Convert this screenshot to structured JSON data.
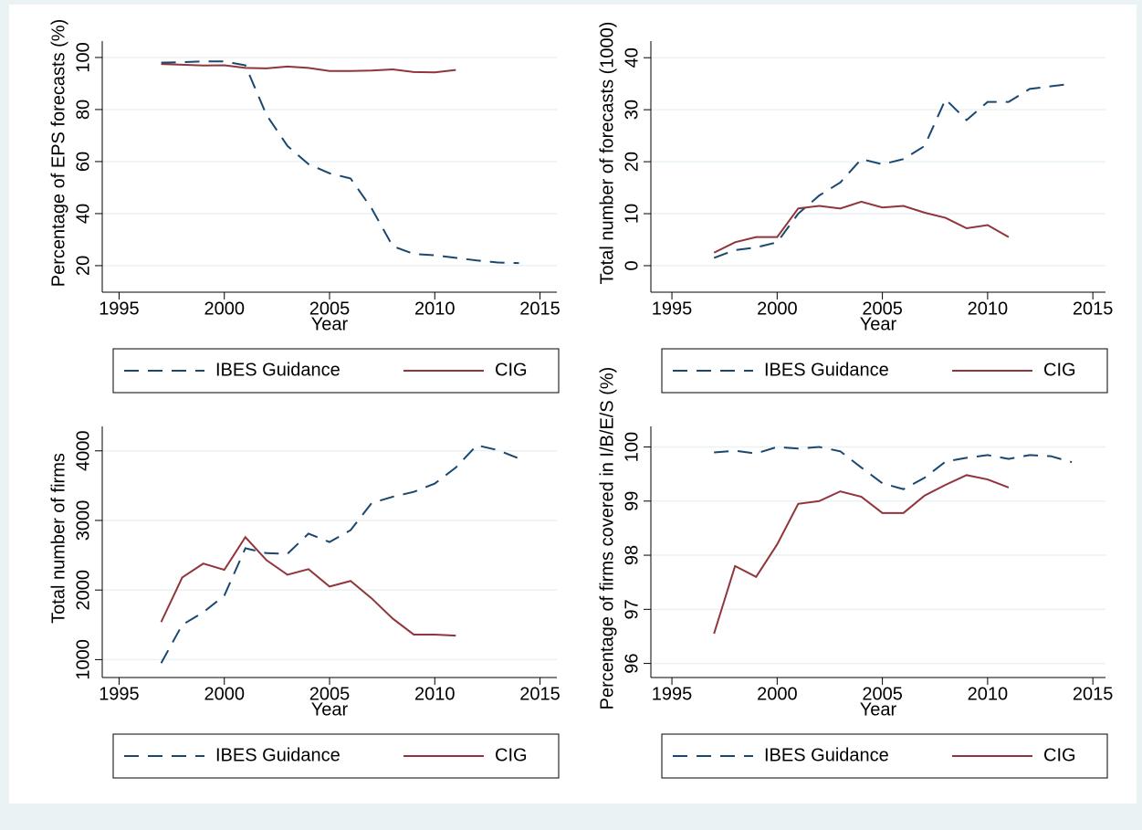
{
  "chart_data": [
    {
      "type": "line",
      "xlabel": "Year",
      "ylabel": "Percentage of EPS forecasts (%)",
      "x": [
        1997,
        1998,
        1999,
        2000,
        2001,
        2002,
        2003,
        2004,
        2005,
        2006,
        2007,
        2008,
        2009,
        2010,
        2011,
        2012,
        2013,
        2014
      ],
      "series": [
        {
          "name": "IBES Guidance",
          "color": "#1a476f",
          "dash": true,
          "values": [
            98,
            98.2,
            98.5,
            98.5,
            97,
            78,
            66,
            59,
            55.5,
            53.5,
            42,
            27.5,
            24.5,
            24,
            23,
            22,
            21.2,
            21
          ]
        },
        {
          "name": "CIG",
          "color": "#90353b",
          "dash": false,
          "values": [
            97.5,
            97.2,
            96.9,
            97,
            96,
            95.8,
            96.5,
            96,
            94.8,
            94.8,
            95,
            95.4,
            94.4,
            94.3,
            95.2,
            null,
            null,
            null
          ]
        }
      ],
      "xlim": [
        1994.2,
        2015.8
      ],
      "xticks": [
        1995,
        2000,
        2005,
        2010,
        2015
      ],
      "ylim": [
        9.8,
        106.3
      ],
      "yticks": [
        20,
        40,
        60,
        80,
        100
      ],
      "grid": true,
      "legend": "bottom"
    },
    {
      "type": "line",
      "xlabel": "Year",
      "ylabel": "Total number of forecasts (1000)",
      "x": [
        1997,
        1998,
        1999,
        2000,
        2001,
        2002,
        2003,
        2004,
        2005,
        2006,
        2007,
        2008,
        2009,
        2010,
        2011,
        2012,
        2013,
        2014
      ],
      "series": [
        {
          "name": "IBES Guidance",
          "color": "#1a476f",
          "dash": true,
          "values": [
            1.5,
            3,
            3.5,
            4.5,
            10,
            13.5,
            16,
            20.5,
            19.5,
            20.5,
            23,
            32,
            28,
            31.5,
            31.5,
            34,
            34.5,
            35
          ]
        },
        {
          "name": "CIG",
          "color": "#90353b",
          "dash": false,
          "values": [
            2.5,
            4.5,
            5.5,
            5.5,
            11,
            11.5,
            11,
            12.3,
            11.2,
            11.5,
            10.2,
            9.2,
            7.2,
            7.8,
            5.5,
            null,
            null,
            null
          ]
        }
      ],
      "xlim": [
        1994.0,
        2015.6
      ],
      "xticks": [
        1995,
        2000,
        2005,
        2010,
        2015
      ],
      "ylim": [
        -5.1,
        43.2
      ],
      "yticks": [
        0,
        10,
        20,
        30,
        40
      ],
      "grid": true,
      "legend": "bottom"
    },
    {
      "type": "line",
      "xlabel": "Year",
      "ylabel": "Total number of firms",
      "x": [
        1997,
        1998,
        1999,
        2000,
        2001,
        2002,
        2003,
        2004,
        2005,
        2006,
        2007,
        2008,
        2009,
        2010,
        2011,
        2012,
        2013,
        2014
      ],
      "series": [
        {
          "name": "IBES Guidance",
          "color": "#1a476f",
          "dash": true,
          "values": [
            950,
            1500,
            1680,
            1920,
            2600,
            2530,
            2520,
            2810,
            2690,
            2860,
            3250,
            3340,
            3410,
            3530,
            3760,
            4080,
            4010,
            3890
          ]
        },
        {
          "name": "CIG",
          "color": "#90353b",
          "dash": false,
          "values": [
            1540,
            2180,
            2380,
            2290,
            2760,
            2430,
            2220,
            2300,
            2050,
            2130,
            1880,
            1590,
            1360,
            1360,
            1345,
            null,
            null,
            null
          ]
        }
      ],
      "xlim": [
        1994.2,
        2015.8
      ],
      "xticks": [
        1995,
        2000,
        2005,
        2010,
        2015
      ],
      "ylim": [
        743,
        4351
      ],
      "yticks": [
        1000,
        2000,
        3000,
        4000
      ],
      "grid": true,
      "legend": "bottom"
    },
    {
      "type": "line",
      "xlabel": "Year",
      "ylabel": "Percentage of firms covered in I/B/E/S (%)",
      "x": [
        1997,
        1998,
        1999,
        2000,
        2001,
        2002,
        2003,
        2004,
        2005,
        2006,
        2007,
        2008,
        2009,
        2010,
        2011,
        2012,
        2013,
        2014
      ],
      "series": [
        {
          "name": "IBES Guidance",
          "color": "#1a476f",
          "dash": true,
          "values": [
            99.9,
            99.93,
            99.88,
            100,
            99.97,
            100,
            99.92,
            99.62,
            99.33,
            99.22,
            99.43,
            99.73,
            99.8,
            99.85,
            99.78,
            99.85,
            99.83,
            99.72
          ]
        },
        {
          "name": "CIG",
          "color": "#90353b",
          "dash": false,
          "values": [
            96.55,
            97.8,
            97.6,
            98.2,
            98.95,
            99,
            99.18,
            99.08,
            98.78,
            98.78,
            99.1,
            99.3,
            99.48,
            99.4,
            99.25,
            null,
            null,
            null
          ]
        }
      ],
      "xlim": [
        1994.0,
        2015.6
      ],
      "xticks": [
        1995,
        2000,
        2005,
        2010,
        2015
      ],
      "ylim": [
        95.74,
        100.38
      ],
      "yticks": [
        96,
        97,
        98,
        99,
        100
      ],
      "grid": true,
      "legend": "bottom"
    }
  ]
}
